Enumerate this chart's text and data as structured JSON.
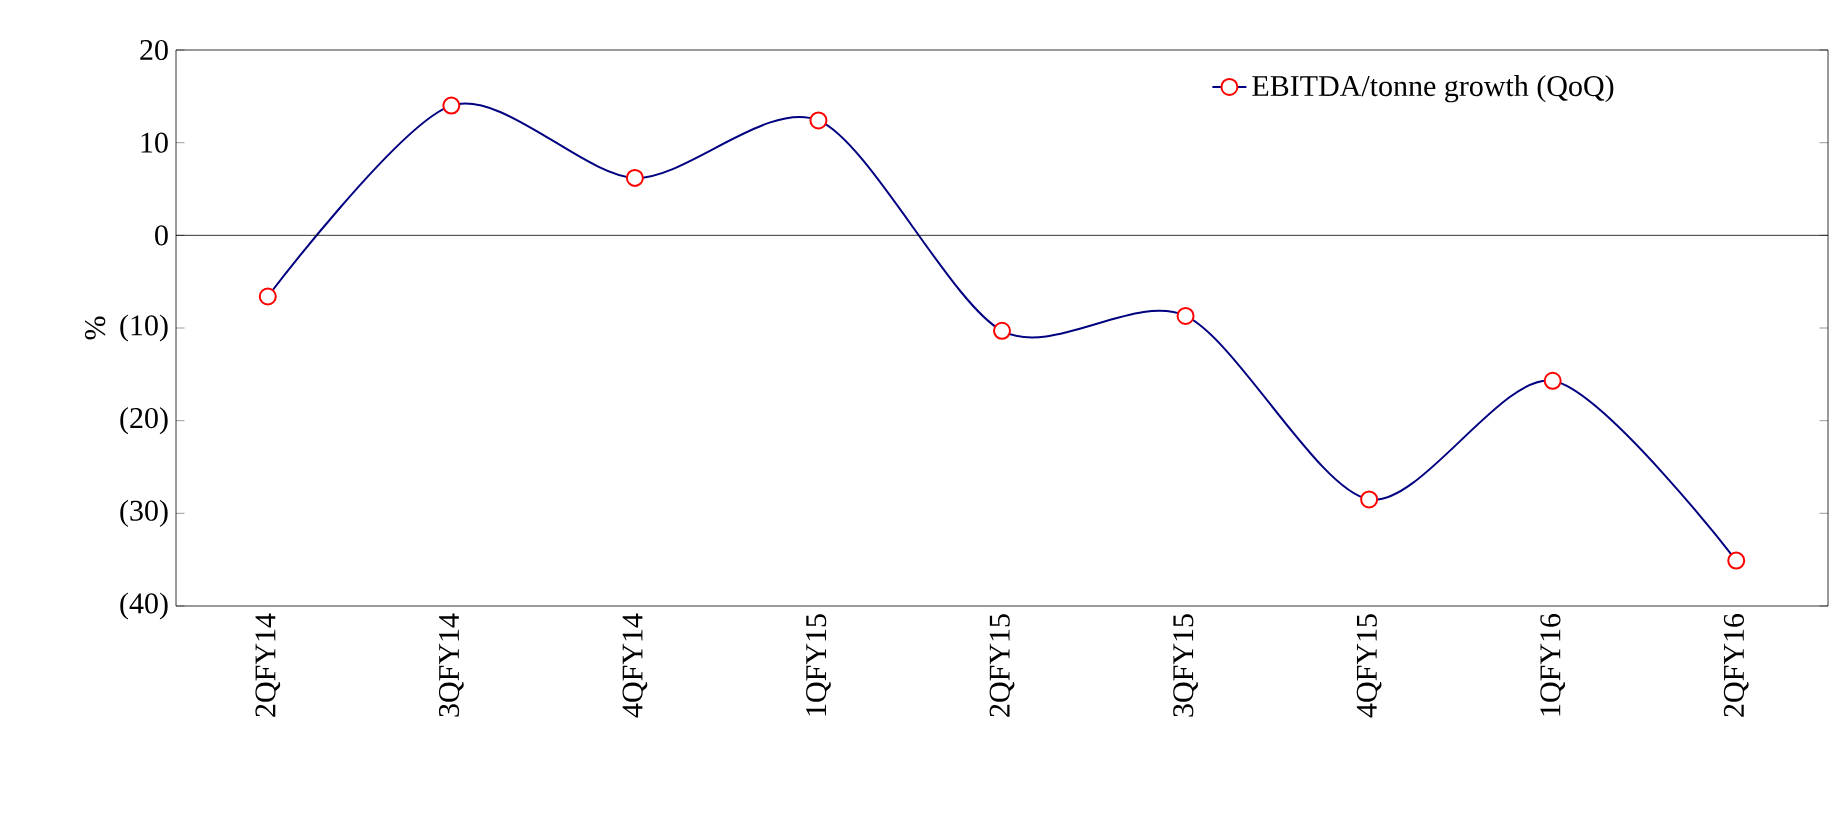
{
  "chart_data": {
    "type": "line",
    "ylabel": "%",
    "categories": [
      "2QFY14",
      "3QFY14",
      "4QFY14",
      "1QFY15",
      "2QFY15",
      "3QFY15",
      "4QFY15",
      "1QFY16",
      "2QFY16"
    ],
    "series": [
      {
        "name": "EBITDA/tonne growth (QoQ)",
        "color": "#000080",
        "values": [
          -6.6,
          14.0,
          6.2,
          12.4,
          -10.3,
          -8.7,
          -28.5,
          -15.7,
          -35.1
        ]
      }
    ],
    "ylim": [
      -40,
      20
    ],
    "yticks": [
      {
        "value": -40,
        "label": "(40)"
      },
      {
        "value": -30,
        "label": "(30)"
      },
      {
        "value": -20,
        "label": "(20)"
      },
      {
        "value": -10,
        "label": "(10)"
      },
      0,
      10,
      20
    ],
    "marker": "circle",
    "line_style": "solid",
    "legend": "top right",
    "ref_lines": [
      {
        "axis": "y",
        "value": 0,
        "color": "#000000"
      }
    ]
  }
}
